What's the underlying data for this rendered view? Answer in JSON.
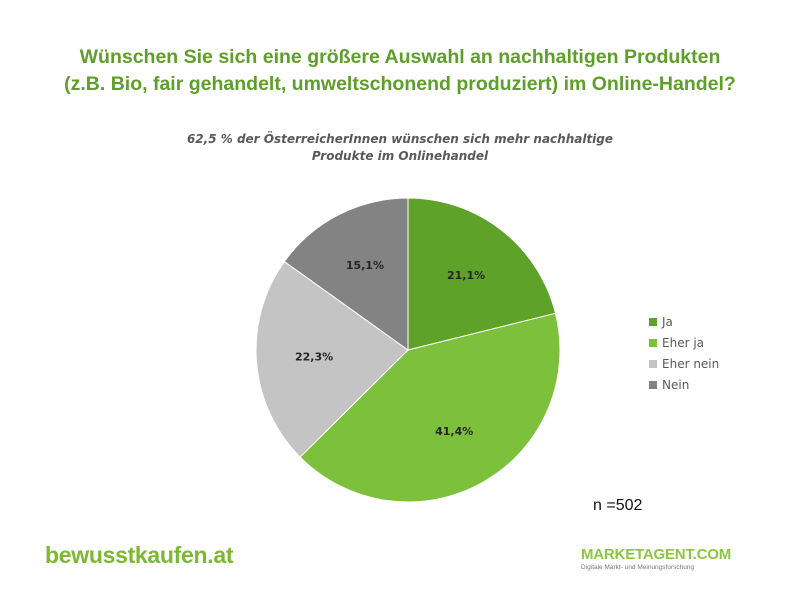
{
  "title_lines": [
    "Wünschen Sie sich eine größere Auswahl an nachhaltigen Produkten",
    "(z.B. Bio, fair gehandelt, umweltschonend produziert) im Online-Handel?"
  ],
  "sample_size": "n =502",
  "logos": {
    "left": "bewusstkaufen.at",
    "right": "MARKETAGENT.COM",
    "right_tagline": "Digitale Markt- und Meinungsforschung"
  },
  "chart_data": {
    "type": "pie",
    "title": "62,5 % der ÖsterreicherInnen wünschen sich mehr nachhaltige Produkte im Onlinehandel",
    "title_lines": [
      "62,5 % der ÖsterreicherInnen wünschen sich mehr nachhaltige",
      "Produkte im Onlinehandel"
    ],
    "categories": [
      "Ja",
      "Eher ja",
      "Eher nein",
      "Nein"
    ],
    "values": [
      21.1,
      41.4,
      22.3,
      15.1
    ],
    "labels": [
      "21,1%",
      "41,4%",
      "22,3%",
      "15,1%"
    ],
    "colors": [
      "#5fa22a",
      "#7cc03c",
      "#c4c4c4",
      "#838383"
    ],
    "start_angle": "12 o'clock",
    "direction": "clockwise",
    "legend_position": "right"
  }
}
